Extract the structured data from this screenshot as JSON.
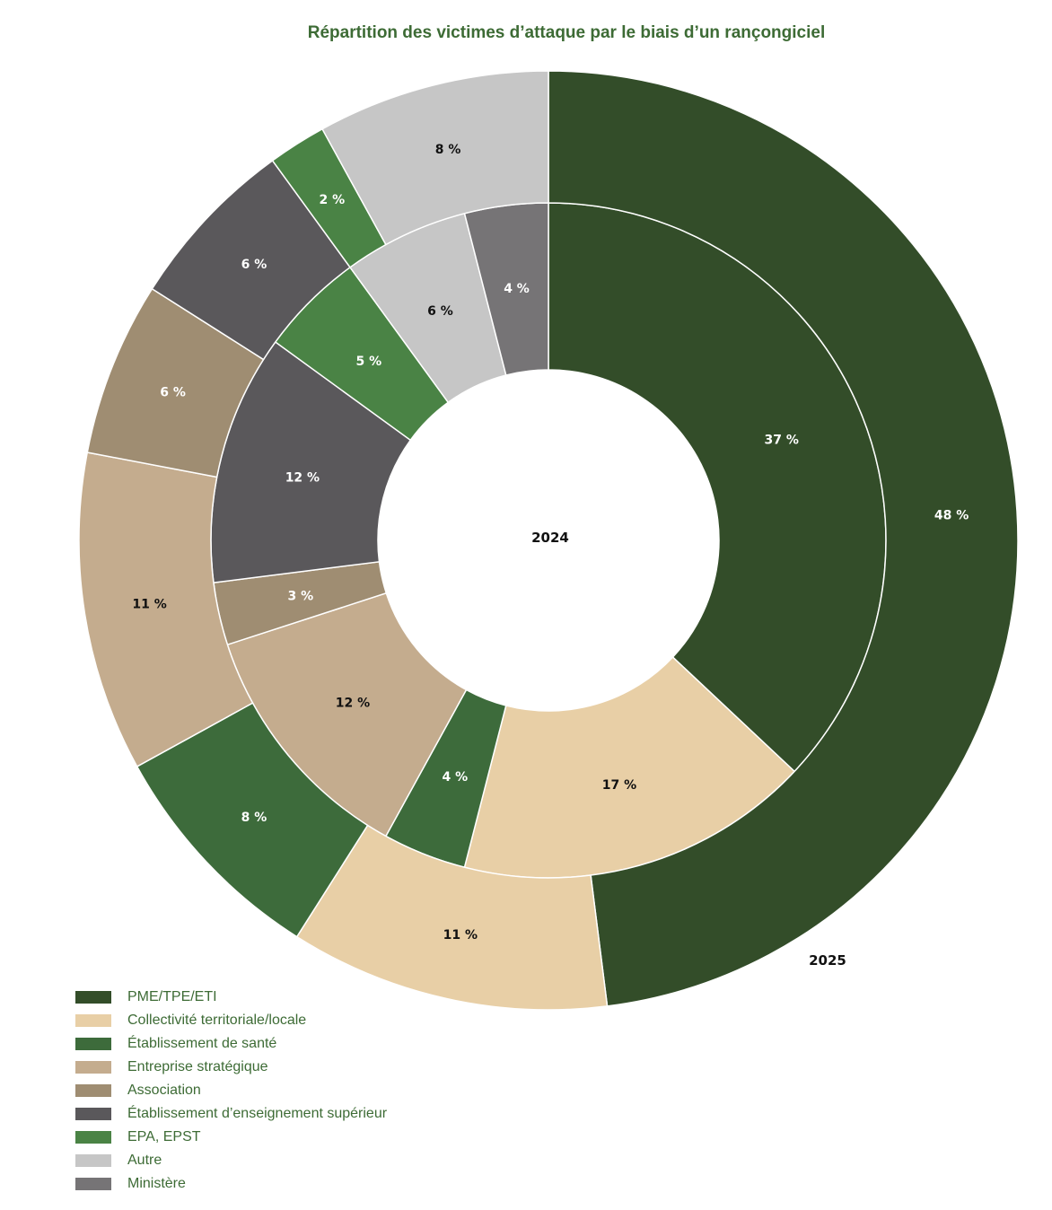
{
  "chart_data": {
    "type": "pie",
    "title": "Répartition des victimes d’attaque par le biais d’un rançongiciel",
    "categories": [
      "PME/TPE/ETI",
      "Collectivité territoriale/locale",
      "Établissement de santé",
      "Entreprise stratégique",
      "Association",
      "Établissement d’enseignement supérieur",
      "EPA, EPST",
      "Autre",
      "Ministère"
    ],
    "colors": [
      "#334d29",
      "#e8cfa6",
      "#3d6b3b",
      "#c4ac8e",
      "#9f8d72",
      "#5a585b",
      "#4a8345",
      "#c6c6c6",
      "#767476"
    ],
    "label_colors": [
      "#ffffff",
      "#111111",
      "#ffffff",
      "#111111",
      "#ffffff",
      "#ffffff",
      "#ffffff",
      "#111111",
      "#ffffff"
    ],
    "series": [
      {
        "name": "2024",
        "ring": "inner",
        "values": [
          37,
          17,
          4,
          12,
          3,
          12,
          5,
          6,
          4
        ],
        "labels": [
          "37 %",
          "17 %",
          "4 %",
          "12 %",
          "3 %",
          "12 %",
          "5 %",
          "6 %",
          "4 %"
        ]
      },
      {
        "name": "2025",
        "ring": "outer",
        "values": [
          48,
          11,
          8,
          11,
          6,
          6,
          2,
          8,
          0
        ],
        "labels": [
          "48 %",
          "11 %",
          "8 %",
          "11 %",
          "6 %",
          "6 %",
          "2 %",
          "8 %",
          ""
        ]
      }
    ],
    "legend_position": "bottom-left"
  }
}
